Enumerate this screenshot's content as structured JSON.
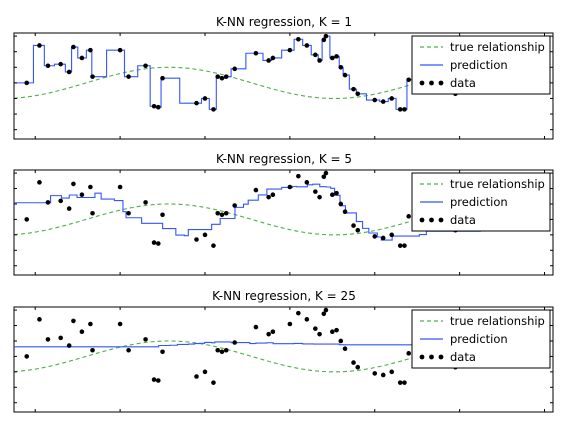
{
  "colors": {
    "true_relationship": "#4daf4a",
    "prediction": "#3355ff",
    "data": "#000000"
  },
  "chart_data": [
    {
      "type": "line",
      "title": "K-NN regression, K = 1",
      "k": 1,
      "xlim": [
        -0.05,
        1.22
      ],
      "ylim": [
        -1.8,
        1.6
      ],
      "grid": false,
      "legend_position": "top-right",
      "legend": [
        "true relationship",
        "prediction",
        "data"
      ],
      "true_relationship": {
        "function": "sin",
        "period": 0.78,
        "phase": 0.12,
        "amplitude": 0.5,
        "x_range": [
          -0.05,
          1.05
        ]
      },
      "data": {
        "x": [
          -0.02,
          0.01,
          0.03,
          0.06,
          0.08,
          0.09,
          0.11,
          0.13,
          0.135,
          0.2,
          0.22,
          0.26,
          0.28,
          0.29,
          0.3,
          0.38,
          0.4,
          0.42,
          0.43,
          0.44,
          0.45,
          0.47,
          0.52,
          0.55,
          0.56,
          0.6,
          0.62,
          0.64,
          0.66,
          0.67,
          0.68,
          0.685,
          0.7,
          0.71,
          0.72,
          0.73,
          0.75,
          0.76,
          0.8,
          0.82,
          0.84,
          0.86,
          0.87,
          0.88,
          0.99,
          1.0
        ],
        "y": [
          0.0,
          1.2,
          0.55,
          0.6,
          0.35,
          1.15,
          0.8,
          1.05,
          0.2,
          1.05,
          0.2,
          0.55,
          -0.75,
          -0.78,
          0.15,
          -0.65,
          -0.5,
          -0.85,
          0.2,
          0.15,
          0.2,
          0.45,
          0.95,
          0.72,
          0.8,
          1.05,
          1.4,
          1.2,
          0.9,
          0.72,
          1.38,
          1.5,
          0.8,
          0.85,
          0.5,
          0.25,
          -0.2,
          -0.35,
          -0.55,
          -0.6,
          -0.5,
          -0.85,
          -0.85,
          0.1,
          -0.35,
          0.05
        ]
      }
    },
    {
      "type": "line",
      "title": "K-NN regression, K = 5",
      "k": 5,
      "xlim": [
        -0.05,
        1.22
      ],
      "ylim": [
        -1.8,
        1.6
      ],
      "grid": false,
      "legend_position": "top-right",
      "legend": [
        "true relationship",
        "prediction",
        "data"
      ],
      "true_relationship": {
        "function": "sin",
        "period": 0.78,
        "phase": 0.12,
        "amplitude": 0.5,
        "x_range": [
          -0.05,
          1.05
        ]
      },
      "data": {
        "x": [
          -0.02,
          0.01,
          0.03,
          0.06,
          0.08,
          0.09,
          0.11,
          0.13,
          0.135,
          0.2,
          0.22,
          0.26,
          0.28,
          0.29,
          0.3,
          0.38,
          0.4,
          0.42,
          0.43,
          0.44,
          0.45,
          0.47,
          0.52,
          0.55,
          0.56,
          0.6,
          0.62,
          0.64,
          0.66,
          0.67,
          0.68,
          0.685,
          0.7,
          0.71,
          0.72,
          0.73,
          0.75,
          0.76,
          0.8,
          0.82,
          0.84,
          0.86,
          0.87,
          0.88,
          0.99,
          1.0
        ],
        "y": [
          0.0,
          1.2,
          0.55,
          0.6,
          0.35,
          1.15,
          0.8,
          1.05,
          0.2,
          1.05,
          0.2,
          0.55,
          -0.75,
          -0.78,
          0.15,
          -0.65,
          -0.5,
          -0.85,
          0.2,
          0.15,
          0.2,
          0.45,
          0.95,
          0.72,
          0.8,
          1.05,
          1.4,
          1.2,
          0.9,
          0.72,
          1.38,
          1.5,
          0.8,
          0.85,
          0.5,
          0.25,
          -0.2,
          -0.35,
          -0.55,
          -0.6,
          -0.5,
          -0.85,
          -0.85,
          0.1,
          -0.35,
          0.05
        ]
      }
    },
    {
      "type": "line",
      "title": "K-NN regression, K = 25",
      "k": 25,
      "xlim": [
        -0.05,
        1.22
      ],
      "ylim": [
        -1.8,
        1.6
      ],
      "grid": false,
      "legend_position": "top-right",
      "legend": [
        "true relationship",
        "prediction",
        "data"
      ],
      "true_relationship": {
        "function": "sin",
        "period": 0.78,
        "phase": 0.12,
        "amplitude": 0.5,
        "x_range": [
          -0.05,
          1.05
        ]
      },
      "data": {
        "x": [
          -0.02,
          0.01,
          0.03,
          0.06,
          0.08,
          0.09,
          0.11,
          0.13,
          0.135,
          0.2,
          0.22,
          0.26,
          0.28,
          0.29,
          0.3,
          0.38,
          0.4,
          0.42,
          0.43,
          0.44,
          0.45,
          0.47,
          0.52,
          0.55,
          0.56,
          0.6,
          0.62,
          0.64,
          0.66,
          0.67,
          0.68,
          0.685,
          0.7,
          0.71,
          0.72,
          0.73,
          0.75,
          0.76,
          0.8,
          0.82,
          0.84,
          0.86,
          0.87,
          0.88,
          0.99,
          1.0
        ],
        "y": [
          0.0,
          1.2,
          0.55,
          0.6,
          0.35,
          1.15,
          0.8,
          1.05,
          0.2,
          1.05,
          0.2,
          0.55,
          -0.75,
          -0.78,
          0.15,
          -0.65,
          -0.5,
          -0.85,
          0.2,
          0.15,
          0.2,
          0.45,
          0.95,
          0.72,
          0.8,
          1.05,
          1.4,
          1.2,
          0.9,
          0.72,
          1.38,
          1.5,
          0.8,
          0.85,
          0.5,
          0.25,
          -0.2,
          -0.35,
          -0.55,
          -0.6,
          -0.5,
          -0.85,
          -0.85,
          0.1,
          -0.35,
          0.05
        ]
      }
    }
  ]
}
